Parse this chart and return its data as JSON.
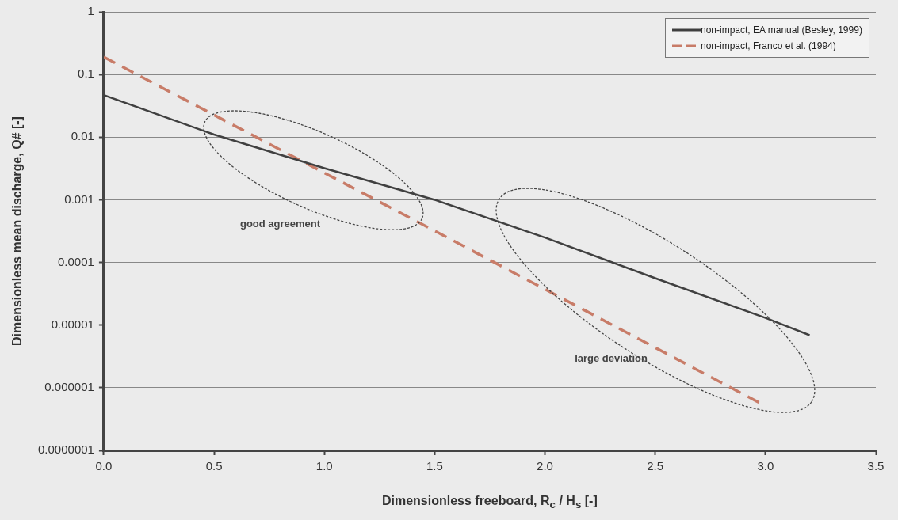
{
  "chart_data": {
    "type": "line",
    "xlabel": "Dimensionless freeboard, R$_{c}$ / H$_{s}$ [-]",
    "ylabel": "Dimensionless mean discharge, Q# [-]",
    "series": [
      {
        "name": "non-impact, EA manual (Besley, 1999)",
        "color": "#404040",
        "line_style": "solid",
        "x": [
          0,
          0.5,
          1,
          1.5,
          2,
          2.5,
          3,
          3.2
        ],
        "values": [
          0.047,
          0.011,
          0.0032,
          0.001,
          0.00025,
          5.6e-05,
          1.3e-05,
          6.9e-06
        ]
      },
      {
        "name": "non-impact, Franco et al. (1994)",
        "color": "#c87c68",
        "line_style": "dashed",
        "x": [
          0,
          1.5,
          2.97
        ],
        "values": [
          0.19,
          0.00032,
          5.8e-07
        ]
      }
    ],
    "xlim": [
      0,
      3.5
    ],
    "xticks": [
      {
        "value": 0,
        "label": "0.0"
      },
      {
        "value": 0.5,
        "label": "0.5"
      },
      {
        "value": 1,
        "label": "1.0"
      },
      {
        "value": 1.5,
        "label": "1.5"
      },
      {
        "value": 2,
        "label": "2.0"
      },
      {
        "value": 2.5,
        "label": "2.5"
      },
      {
        "value": 3,
        "label": "3.0"
      },
      {
        "value": 3.5,
        "label": "3.5"
      }
    ],
    "ylim": [
      1e-07,
      1
    ],
    "yticks": [
      1,
      0.1,
      0.01,
      0.001,
      0.0001,
      {
        "value": 1e-05,
        "label": "0.00001"
      },
      {
        "value": 1e-06,
        "label": "0.000001"
      },
      {
        "value": 1e-07,
        "label": "0.0000001"
      }
    ],
    "log": "y",
    "grid": "y",
    "legend": "top right",
    "marker": "none",
    "annotations": [
      "good agreement",
      "large deviation"
    ]
  }
}
